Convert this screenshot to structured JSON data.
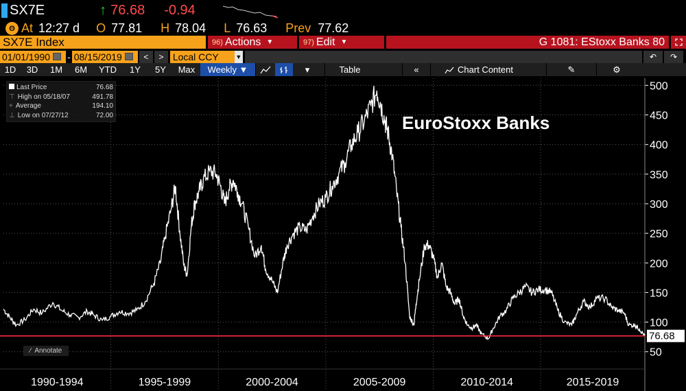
{
  "header": {
    "ticker": "SX7E",
    "up_arrow": "↑",
    "last": "76.68",
    "change": "-0.94",
    "at_label": "At",
    "time": "12:27 d",
    "open_label": "O",
    "open": "77.81",
    "high_label": "H",
    "high": "78.04",
    "low_label": "L",
    "low": "76.63",
    "prev_label": "Prev",
    "prev": "77.62"
  },
  "toolbar": {
    "ticker_box": "SX7E Index",
    "actions_num": "96)",
    "actions_label": "Actions",
    "edit_num": "97)",
    "edit_label": "Edit",
    "function_title": "G 1081: EStoxx Banks 80",
    "date_from": "01/01/1990",
    "date_to": "08/15/2019",
    "currency": "Local CCY",
    "periods": [
      "1D",
      "3D",
      "1M",
      "6M",
      "YTD",
      "1Y",
      "5Y",
      "Max"
    ],
    "frequency": "Weekly ▼",
    "table_label": "Table",
    "chart_content_label": "Chart Content"
  },
  "legend": {
    "items": [
      {
        "label": "Last Price",
        "value": "76.68"
      },
      {
        "label": "High on 05/18/07",
        "value": "491.78"
      },
      {
        "label": "Average",
        "value": "194.10"
      },
      {
        "label": "Low on 07/27/12",
        "value": "72.00"
      }
    ]
  },
  "annotate_label": "Annotate",
  "chart_data": {
    "type": "line",
    "title": "EuroStoxx Banks",
    "y_ticks": [
      50,
      100,
      150,
      200,
      250,
      300,
      350,
      400,
      450,
      500
    ],
    "ylim": [
      30,
      512
    ],
    "x_categories": [
      "1990-1994",
      "1995-1999",
      "2000-2004",
      "2005-2009",
      "2010-2014",
      "2015-2019"
    ],
    "xlim": [
      1990.0,
      2019.85
    ],
    "last_price_line": 76.68,
    "last_price_label": "76.68",
    "series": [
      {
        "x": [
          1990.0,
          1990.3,
          1990.6,
          1991.0,
          1991.4,
          1991.8,
          1992.3,
          1992.7,
          1993.1,
          1993.5,
          1993.9,
          1994.2,
          1994.6,
          1995.0,
          1995.4,
          1995.8,
          1996.2,
          1996.6,
          1997.0,
          1997.3,
          1997.5,
          1997.8,
          1998.0,
          1998.2,
          1998.4,
          1998.55,
          1998.75,
          1998.9,
          1999.1,
          1999.3,
          1999.6,
          1999.9,
          2000.1,
          2000.3,
          2000.5,
          2000.7,
          2000.9,
          2001.1,
          2001.4,
          2001.7,
          2002.0,
          2002.2,
          2002.5,
          2002.75,
          2003.0,
          2003.2,
          2003.5,
          2003.8,
          2004.1,
          2004.4,
          2004.7,
          2005.0,
          2005.3,
          2005.6,
          2005.9,
          2006.2,
          2006.5,
          2006.8,
          2007.1,
          2007.38,
          2007.55,
          2007.75,
          2007.9,
          2008.1,
          2008.3,
          2008.5,
          2008.7,
          2008.9,
          2009.1,
          2009.2,
          2009.35,
          2009.6,
          2009.8,
          2010.0,
          2010.2,
          2010.4,
          2010.6,
          2010.8,
          2011.0,
          2011.2,
          2011.4,
          2011.6,
          2011.8,
          2012.0,
          2012.25,
          2012.57,
          2012.8,
          2013.1,
          2013.4,
          2013.7,
          2014.0,
          2014.3,
          2014.6,
          2014.9,
          2015.2,
          2015.5,
          2015.8,
          2016.1,
          2016.45,
          2016.7,
          2017.0,
          2017.3,
          2017.6,
          2018.0,
          2018.3,
          2018.6,
          2018.9,
          2019.1,
          2019.4,
          2019.6,
          2019.85
        ],
        "y": [
          122,
          108,
          95,
          104,
          122,
          115,
          133,
          120,
          112,
          108,
          118,
          112,
          103,
          110,
          118,
          115,
          120,
          135,
          165,
          200,
          240,
          290,
          330,
          255,
          195,
          180,
          265,
          300,
          320,
          340,
          355,
          350,
          330,
          300,
          325,
          340,
          320,
          300,
          260,
          210,
          230,
          190,
          170,
          150,
          200,
          230,
          250,
          260,
          255,
          280,
          300,
          310,
          330,
          350,
          370,
          400,
          420,
          440,
          465,
          491,
          470,
          440,
          420,
          380,
          320,
          260,
          200,
          110,
          95,
          130,
          170,
          230,
          230,
          210,
          175,
          200,
          160,
          150,
          130,
          140,
          110,
          95,
          90,
          95,
          80,
          72,
          90,
          110,
          120,
          140,
          150,
          160,
          150,
          155,
          155,
          150,
          120,
          100,
          95,
          115,
          135,
          125,
          140,
          140,
          125,
          120,
          115,
          95,
          95,
          88,
          76.68
        ]
      }
    ]
  }
}
